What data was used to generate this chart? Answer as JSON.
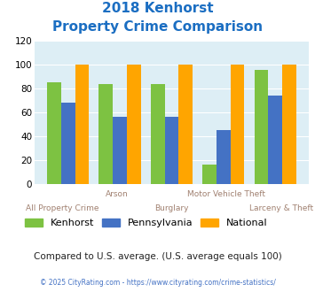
{
  "title_line1": "2018 Kenhorst",
  "title_line2": "Property Crime Comparison",
  "categories": [
    "All Property Crime",
    "Arson",
    "Burglary",
    "Motor Vehicle Theft",
    "Larceny & Theft"
  ],
  "cat_row1": [
    "",
    "Arson",
    "",
    "Motor Vehicle Theft",
    ""
  ],
  "cat_row2": [
    "All Property Crime",
    "",
    "Burglary",
    "",
    "Larceny & Theft"
  ],
  "kenhorst": [
    85,
    84,
    84,
    16,
    96
  ],
  "pennsylvania": [
    68,
    56,
    56,
    45,
    74
  ],
  "national": [
    100,
    100,
    100,
    100,
    100
  ],
  "kenhorst_color": "#7dc242",
  "pennsylvania_color": "#4472c4",
  "national_color": "#ffa500",
  "title_color": "#1b6ec2",
  "bg_color": "#ddeef5",
  "ylim": [
    0,
    120
  ],
  "yticks": [
    0,
    20,
    40,
    60,
    80,
    100,
    120
  ],
  "xlabel_color": "#a08070",
  "footer_text": "Compared to U.S. average. (U.S. average equals 100)",
  "footer_color": "#222222",
  "credit_text": "© 2025 CityRating.com - https://www.cityrating.com/crime-statistics/",
  "credit_color": "#4472c4"
}
